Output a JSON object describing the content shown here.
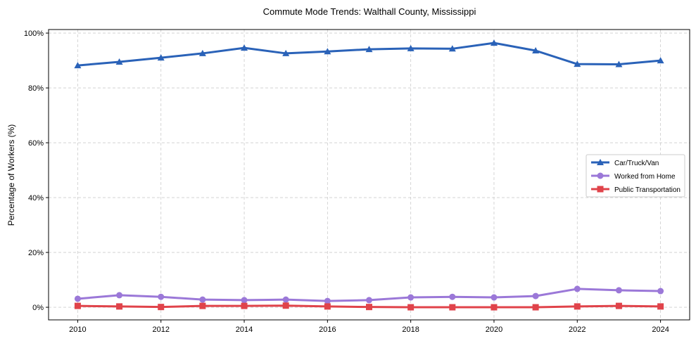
{
  "chart_data": {
    "type": "line",
    "title": "Commute Mode Trends: Walthall County, Mississippi",
    "xlabel": "",
    "ylabel": "Percentage of Workers (%)",
    "x": [
      2010,
      2011,
      2012,
      2013,
      2014,
      2015,
      2016,
      2017,
      2018,
      2019,
      2020,
      2021,
      2022,
      2023,
      2024
    ],
    "xticks": [
      2010,
      2012,
      2014,
      2016,
      2018,
      2020,
      2022,
      2024
    ],
    "xtick_labels": [
      "2010",
      "2012",
      "2014",
      "2016",
      "2018",
      "2020",
      "2022",
      "2024"
    ],
    "yticks": [
      0,
      20,
      40,
      60,
      80,
      100
    ],
    "ytick_labels": [
      "0%",
      "20%",
      "40%",
      "60%",
      "80%",
      "100%"
    ],
    "xlim": [
      2009.3,
      2024.7
    ],
    "ylim": [
      -4.6,
      101.3
    ],
    "grid": true,
    "legend_position": "center-right",
    "series": [
      {
        "name": "Car/Truck/Van",
        "color": "#2a62b8",
        "marker": "triangle",
        "values": [
          88.2,
          89.5,
          91.0,
          92.6,
          94.6,
          92.6,
          93.3,
          94.1,
          94.4,
          94.3,
          96.4,
          93.6,
          88.7,
          88.6,
          90.0
        ]
      },
      {
        "name": "Worked from Home",
        "color": "#9b78d8",
        "marker": "circle",
        "values": [
          3.1,
          4.4,
          3.8,
          2.8,
          2.6,
          2.8,
          2.3,
          2.6,
          3.6,
          3.8,
          3.6,
          4.1,
          6.7,
          6.2,
          5.9
        ]
      },
      {
        "name": "Public Transportation",
        "color": "#e0434a",
        "marker": "square",
        "values": [
          0.5,
          0.3,
          0.1,
          0.5,
          0.5,
          0.6,
          0.3,
          0.1,
          0.0,
          0.0,
          0.0,
          0.0,
          0.3,
          0.5,
          0.3
        ]
      }
    ]
  }
}
